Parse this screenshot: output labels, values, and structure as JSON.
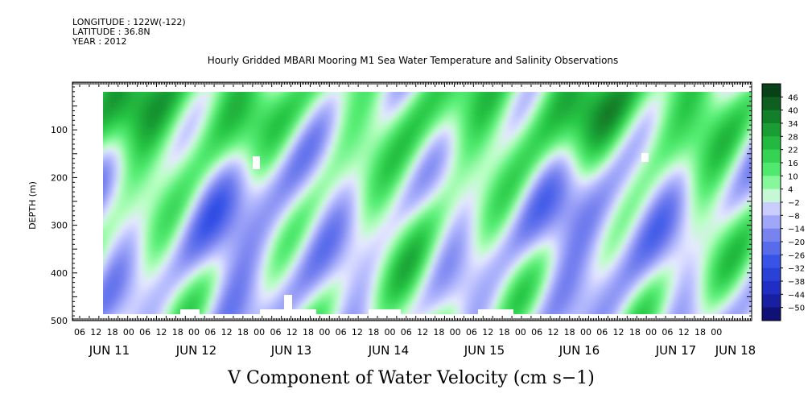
{
  "chart_data": {
    "type": "heatmap",
    "header_lines": [
      "LONGITUDE : 122W(-122)",
      "LATITUDE : 36.8N",
      "YEAR : 2012"
    ],
    "title": "Hourly Gridded MBARI Mooring M1 Sea Water Temperature and Salinity Observations",
    "xlabel": "V Component of Water Velocity (cm s−1)",
    "ylabel": "DEPTH (m)",
    "ylim": [
      500,
      0
    ],
    "yticks": [
      100,
      200,
      300,
      400,
      500
    ],
    "x_hour_ticks": [
      "06",
      "12",
      "18",
      "00",
      "06",
      "12",
      "18",
      "00",
      "06",
      "12",
      "18",
      "00",
      "06",
      "12",
      "18",
      "00",
      "06",
      "12",
      "18",
      "00",
      "06",
      "12",
      "18",
      "00",
      "06",
      "12",
      "18",
      "00",
      "06",
      "12",
      "18",
      "00",
      "06",
      "12",
      "18",
      "00",
      "06",
      "12",
      "18",
      "00"
    ],
    "x_day_labels": [
      "JUN 11",
      "JUN 12",
      "JUN 13",
      "JUN 14",
      "JUN 15",
      "JUN 16",
      "JUN 17",
      "JUN 18"
    ],
    "colorbar_labels": [
      "46",
      "40",
      "34",
      "28",
      "22",
      "16",
      "10",
      "4",
      "−2",
      "−8",
      "−14",
      "−20",
      "−26",
      "−32",
      "−38",
      "−44",
      "−50"
    ],
    "colorbar_range": [
      -50,
      50
    ],
    "colors": {
      "deep_green": "#0a3d16",
      "green": "#1fb03c",
      "light_green": "#5cf07a",
      "pale_green": "#b8ffc2",
      "pale_blue": "#c4c8ff",
      "blue": "#8a94f0",
      "deep_blue": "#3048e0",
      "navy": "#0a0a60"
    }
  }
}
